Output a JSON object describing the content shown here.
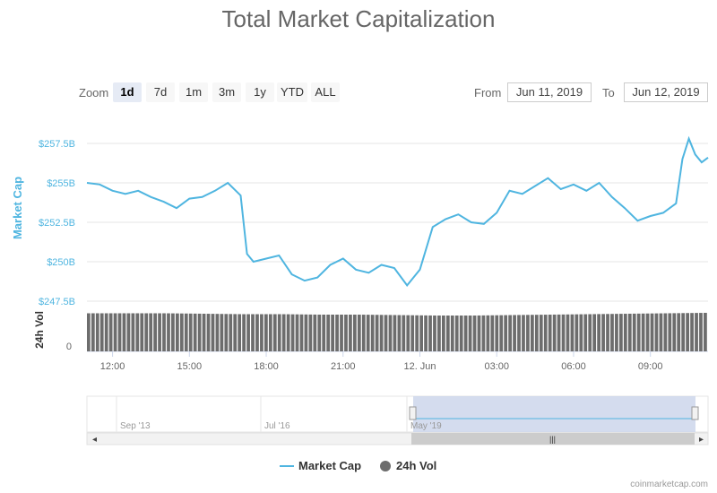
{
  "title": "Total Market Capitalization",
  "zoom": {
    "label": "Zoom",
    "buttons": [
      "1d",
      "7d",
      "1m",
      "3m",
      "1y",
      "YTD",
      "ALL"
    ],
    "active": "1d"
  },
  "range": {
    "from_label": "From",
    "from_value": "Jun 11, 2019",
    "to_label": "To",
    "to_value": "Jun 12, 2019"
  },
  "colors": {
    "market_cap": "#4fb5e0",
    "volume": "#6d6d6d",
    "navigator_fill": "#ccd6eb",
    "grid": "#e6e6e6"
  },
  "chart_data": {
    "type": "line",
    "y_axis": {
      "label": "Market Cap",
      "ticks": [
        "$257.5B",
        "$255B",
        "$252.5B",
        "$250B",
        "$247.5B"
      ],
      "tick_values": [
        257.5,
        255,
        252.5,
        250,
        247.5
      ],
      "range": [
        247.5,
        257.5
      ]
    },
    "volume_axis": {
      "label": "24h Vol",
      "ticks": [
        "0"
      ]
    },
    "x_axis": {
      "ticks": [
        "12:00",
        "15:00",
        "18:00",
        "21:00",
        "12. Jun",
        "03:00",
        "06:00",
        "09:00"
      ],
      "range": [
        "Jun 11, 2019 11:00",
        "Jun 12, 2019 11:15"
      ]
    },
    "series": [
      {
        "name": "Market Cap",
        "points": [
          [
            "Jun 11 11:00",
            255.0
          ],
          [
            "Jun 11 11:30",
            254.9
          ],
          [
            "Jun 11 12:00",
            254.5
          ],
          [
            "Jun 11 12:30",
            254.3
          ],
          [
            "Jun 11 13:00",
            254.5
          ],
          [
            "Jun 11 13:30",
            254.1
          ],
          [
            "Jun 11 14:00",
            253.8
          ],
          [
            "Jun 11 14:30",
            253.4
          ],
          [
            "Jun 11 15:00",
            254.0
          ],
          [
            "Jun 11 15:30",
            254.1
          ],
          [
            "Jun 11 16:00",
            254.5
          ],
          [
            "Jun 11 16:30",
            255.0
          ],
          [
            "Jun 11 17:00",
            254.2
          ],
          [
            "Jun 11 17:15",
            250.5
          ],
          [
            "Jun 11 17:30",
            250.0
          ],
          [
            "Jun 11 18:00",
            250.2
          ],
          [
            "Jun 11 18:30",
            250.4
          ],
          [
            "Jun 11 19:00",
            249.2
          ],
          [
            "Jun 11 19:30",
            248.8
          ],
          [
            "Jun 11 20:00",
            249.0
          ],
          [
            "Jun 11 20:30",
            249.8
          ],
          [
            "Jun 11 21:00",
            250.2
          ],
          [
            "Jun 11 21:30",
            249.5
          ],
          [
            "Jun 11 22:00",
            249.3
          ],
          [
            "Jun 11 22:30",
            249.8
          ],
          [
            "Jun 11 23:00",
            249.6
          ],
          [
            "Jun 11 23:30",
            248.5
          ],
          [
            "Jun 12 00:00",
            249.5
          ],
          [
            "Jun 12 00:30",
            252.2
          ],
          [
            "Jun 12 01:00",
            252.7
          ],
          [
            "Jun 12 01:30",
            253.0
          ],
          [
            "Jun 12 02:00",
            252.5
          ],
          [
            "Jun 12 02:30",
            252.4
          ],
          [
            "Jun 12 03:00",
            253.1
          ],
          [
            "Jun 12 03:30",
            254.5
          ],
          [
            "Jun 12 04:00",
            254.3
          ],
          [
            "Jun 12 04:30",
            254.8
          ],
          [
            "Jun 12 05:00",
            255.3
          ],
          [
            "Jun 12 05:30",
            254.6
          ],
          [
            "Jun 12 06:00",
            254.9
          ],
          [
            "Jun 12 06:30",
            254.5
          ],
          [
            "Jun 12 07:00",
            255.0
          ],
          [
            "Jun 12 07:30",
            254.1
          ],
          [
            "Jun 12 08:00",
            253.4
          ],
          [
            "Jun 12 08:30",
            252.6
          ],
          [
            "Jun 12 09:00",
            252.9
          ],
          [
            "Jun 12 09:30",
            253.1
          ],
          [
            "Jun 12 10:00",
            253.7
          ],
          [
            "Jun 12 10:15",
            256.5
          ],
          [
            "Jun 12 10:30",
            257.8
          ],
          [
            "Jun 12 10:45",
            256.8
          ],
          [
            "Jun 12 11:00",
            256.3
          ],
          [
            "Jun 12 11:15",
            256.6
          ]
        ]
      },
      {
        "name": "24h Vol",
        "type": "column",
        "relative_levels": [
          0.85,
          0.85,
          0.85,
          0.84,
          0.83,
          0.83,
          0.82,
          0.82,
          0.81,
          0.8,
          0.8,
          0.81,
          0.82,
          0.83,
          0.84,
          0.85,
          0.86
        ]
      }
    ],
    "navigator": {
      "ticks": [
        "Sep '13",
        "Jul '16",
        "May '19"
      ],
      "selected_range": [
        "Jun 11, 2019",
        "Jun 12, 2019"
      ]
    },
    "legend": {
      "position": "bottom",
      "items": [
        "Market Cap",
        "24h Vol"
      ]
    },
    "grid": true
  },
  "credit": "coinmarketcap.com"
}
